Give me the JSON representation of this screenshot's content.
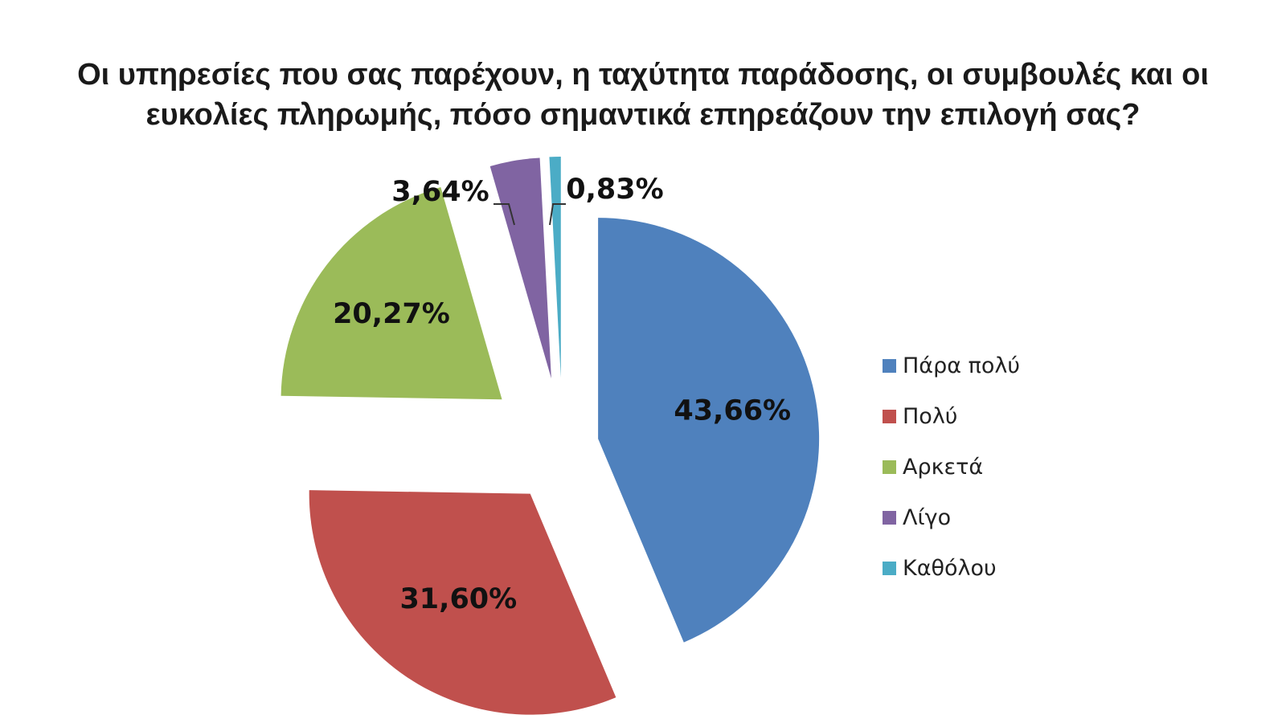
{
  "title": {
    "line1": "Οι υπηρεσίες που σας παρέχουν, η ταχύτητα παράδοσης, οι συμβουλές και οι",
    "line2": "ευκολίες πληρωμής, πόσο σημαντικά επηρεάζουν την επιλογή σας?"
  },
  "chart_data": {
    "type": "pie",
    "title": "Οι υπηρεσίες που σας παρέχουν, η ταχύτητα παράδοσης, οι συμβουλές και οι ευκολίες πληρωμής, πόσο σημαντικά επηρεάζουν την επιλογή σας?",
    "categories": [
      "Πάρα πολύ",
      "Πολύ",
      "Αρκετά",
      "Λίγο",
      "Καθόλου"
    ],
    "values": [
      43.66,
      31.6,
      20.27,
      3.64,
      0.83
    ],
    "labels": [
      "43,66%",
      "31,60%",
      "20,27%",
      "3,64%",
      "0,83%"
    ],
    "colors": [
      "#4F81BD",
      "#C0504D",
      "#9BBB59",
      "#8064A2",
      "#4BACC6"
    ],
    "exploded": true,
    "legend_position": "right"
  },
  "legend": {
    "items": [
      {
        "label": "Πάρα πολύ",
        "color": "#4F81BD"
      },
      {
        "label": "Πολύ",
        "color": "#C0504D"
      },
      {
        "label": "Αρκετά",
        "color": "#9BBB59"
      },
      {
        "label": "Λίγο",
        "color": "#8064A2"
      },
      {
        "label": "Καθόλου",
        "color": "#4BACC6"
      }
    ]
  }
}
